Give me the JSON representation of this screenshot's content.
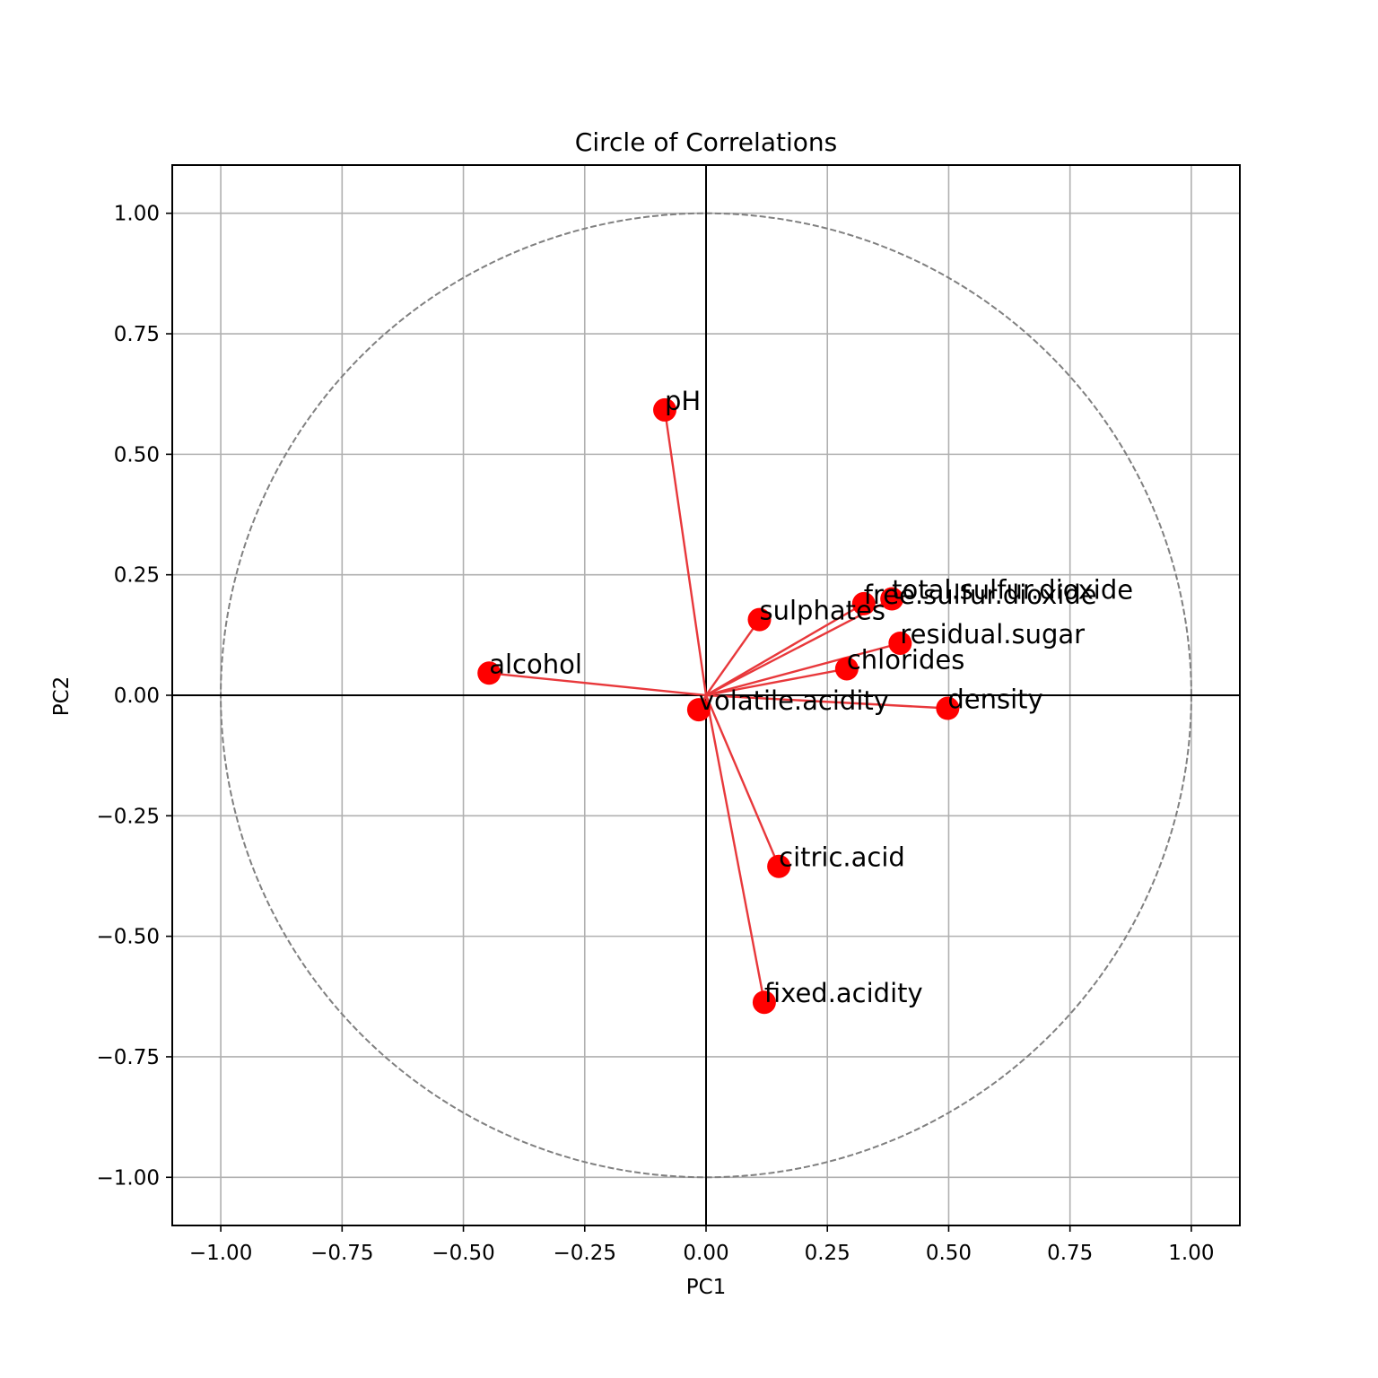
{
  "chart_data": {
    "type": "scatter",
    "title": "Circle of Correlations",
    "xlabel": "PC1",
    "ylabel": "PC2",
    "xlim": [
      -1.1,
      1.1
    ],
    "ylim": [
      -1.1,
      1.1
    ],
    "grid": true,
    "xticks": [
      -1.0,
      -0.75,
      -0.5,
      -0.25,
      0.0,
      0.25,
      0.5,
      0.75,
      1.0
    ],
    "yticks": [
      -1.0,
      -0.75,
      -0.5,
      -0.25,
      0.0,
      0.25,
      0.5,
      0.75,
      1.0
    ],
    "xtick_labels": [
      "−1.00",
      "−0.75",
      "−0.50",
      "−0.25",
      "0.00",
      "0.25",
      "0.50",
      "0.75",
      "1.00"
    ],
    "ytick_labels": [
      "−1.00",
      "−0.75",
      "−0.50",
      "−0.25",
      "0.00",
      "0.25",
      "0.50",
      "0.75",
      "1.00"
    ],
    "unit_circle": true,
    "marker_color": "#ff0000",
    "arrow_color": "#e8383b",
    "circle_color": "#808080",
    "points": [
      {
        "label": "pH",
        "x": -0.085,
        "y": 0.592
      },
      {
        "label": "sulphates",
        "x": 0.11,
        "y": 0.157
      },
      {
        "label": "free.sulfur.dioxide",
        "x": 0.325,
        "y": 0.19
      },
      {
        "label": "total.sulfur.dioxide",
        "x": 0.383,
        "y": 0.2
      },
      {
        "label": "residual.sugar",
        "x": 0.4,
        "y": 0.108
      },
      {
        "label": "chlorides",
        "x": 0.29,
        "y": 0.055
      },
      {
        "label": "alcohol",
        "x": -0.447,
        "y": 0.046
      },
      {
        "label": "volatile.acidity",
        "x": -0.015,
        "y": -0.03
      },
      {
        "label": "density",
        "x": 0.498,
        "y": -0.027
      },
      {
        "label": "citric.acid",
        "x": 0.15,
        "y": -0.355
      },
      {
        "label": "fixed.acidity",
        "x": 0.12,
        "y": -0.637
      }
    ]
  }
}
